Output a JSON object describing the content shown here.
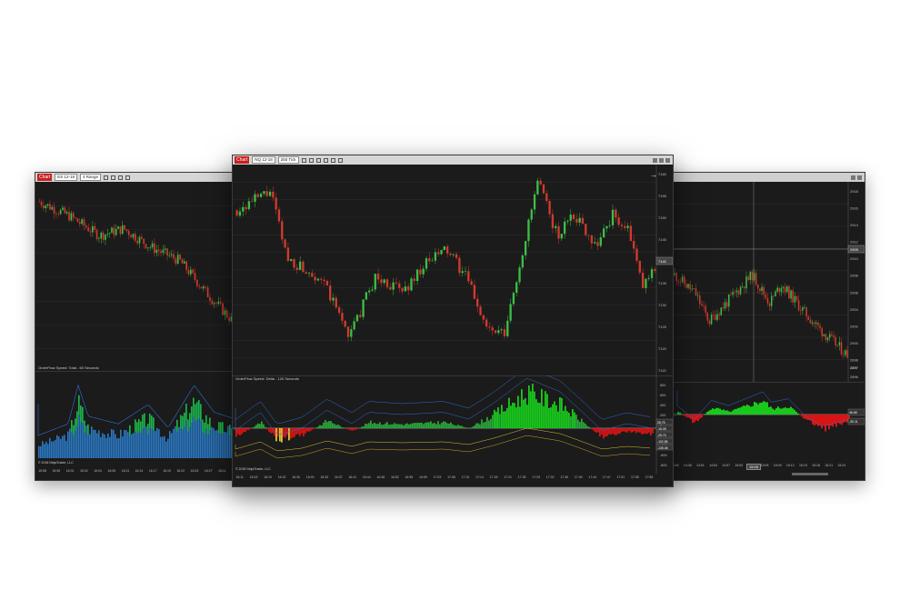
{
  "left_window": {
    "chart_tab": "Chart",
    "instrument": "ES 12-18",
    "interval": "4 Range",
    "indicator_label": "OrderFlow Speed: Total - 60 Seconds",
    "copyright": "© 2018 NinjaTrader, LLC",
    "time_labels": [
      "15:58",
      "15:59",
      "16:01",
      "16:02",
      "16:04",
      "16:06",
      "16:11",
      "16:14",
      "16:17",
      "16:19",
      "16:22",
      "16:25",
      "16:27",
      "16:11",
      "16:31"
    ]
  },
  "center_window": {
    "chart_tab": "Chart",
    "instrument": "NQ 12-18",
    "interval": "250 Tick",
    "indicator_label": "OrderFlow Speed: Delta - 120 Seconds",
    "copyright": "© 2018 NinjaTrader, LLC",
    "price_labels": [
      "7160",
      "7155",
      "7150",
      "7145",
      "7140",
      "7135",
      "7130",
      "7125",
      "7120",
      "7115"
    ],
    "current_price": "7142",
    "indicator_scale": [
      "800",
      "600",
      "400",
      "200",
      "0",
      "-200",
      "-400",
      "-600",
      "-800"
    ],
    "indicator_tags": [
      "28.75",
      "-15.28",
      "-25.70",
      "-102.85",
      "-135.48"
    ],
    "time_labels": [
      "16:11",
      "16:15",
      "16:19",
      "16:22",
      "16:26",
      "16:30",
      "16:33",
      "16:37",
      "16:41",
      "16:44",
      "16:48",
      "16:52",
      "16:55",
      "16:59",
      "17:03",
      "17:06",
      "17:10",
      "17:14",
      "17:18",
      "17:21",
      "17:25",
      "17:29",
      "17:32",
      "17:36",
      "17:40",
      "17:44",
      "17:47",
      "17:51",
      "17:55",
      "17:58"
    ]
  },
  "right_window": {
    "price_labels": [
      "2918",
      "2916",
      "2914",
      "2912",
      "2910",
      "2908",
      "2906",
      "2904",
      "2902",
      "2900",
      "2898",
      "2896"
    ],
    "crosshair_price": "2909",
    "current_price": "2897",
    "indicator_tags": [
      "46.65",
      "-30.11"
    ],
    "crosshair_time": "15:05",
    "time_labels": [
      "14:42",
      "14:45",
      "14:48",
      "14:51",
      "14:54",
      "14:57",
      "15:00",
      "15:03",
      "15:05",
      "15:09",
      "15:12",
      "15:15",
      "15:18",
      "15:21",
      "15:24"
    ]
  },
  "colors": {
    "panel_bg": "#1b1b1b",
    "up_candle": "#3bbf45",
    "down_candle": "#d23a2e",
    "bullish_fill": "#18c91c",
    "bearish_fill": "#d81414",
    "volume_blue": "#2a78c2",
    "band_lines": "#2d6fd6",
    "caution_yellow": "#e0c12a"
  },
  "icons": [
    "chart-tab-icon",
    "instrument-dropdown-icon",
    "interval-dropdown-icon",
    "crosshair-icon",
    "zoom-icon",
    "drawing-tools-icon",
    "properties-icon",
    "minimize-icon",
    "maximize-icon",
    "close-icon",
    "scroll-arrow-icon"
  ]
}
